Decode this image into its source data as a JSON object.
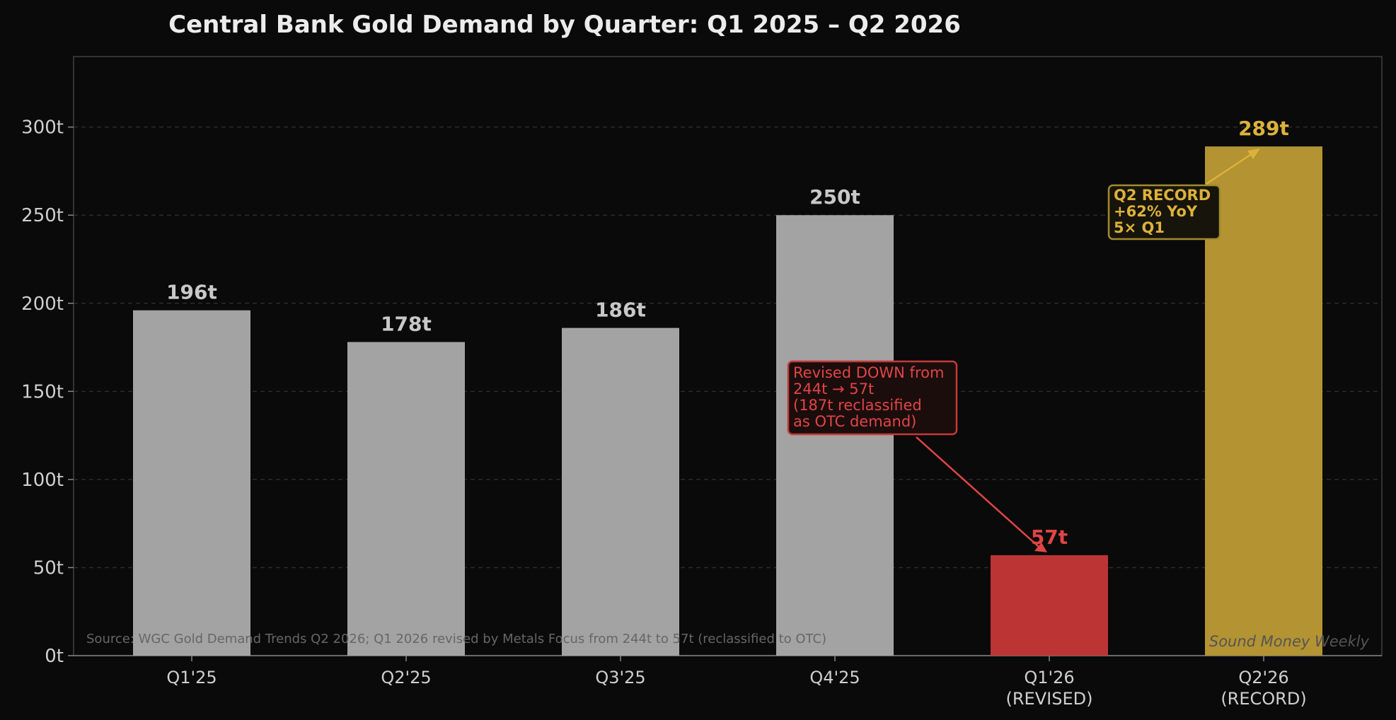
{
  "chart_data": {
    "type": "bar",
    "title": "Central Bank Gold Demand by Quarter: Q1 2025 – Q2 2026",
    "xlabel": "",
    "ylabel": "",
    "ylim": [
      0,
      340
    ],
    "yticks": [
      0,
      50,
      100,
      150,
      200,
      250,
      300
    ],
    "ytick_labels": [
      "0t",
      "50t",
      "100t",
      "150t",
      "200t",
      "250t",
      "300t"
    ],
    "grid": true,
    "categories": [
      [
        "Q1'25"
      ],
      [
        "Q2'25"
      ],
      [
        "Q3'25"
      ],
      [
        "Q4'25"
      ],
      [
        "Q1'26",
        "(REVISED)"
      ],
      [
        "Q2'26",
        "(RECORD)"
      ]
    ],
    "values": [
      196,
      178,
      186,
      250,
      57,
      289
    ],
    "value_labels": [
      "196t",
      "178t",
      "186t",
      "250t",
      "57t",
      "289t"
    ],
    "bar_colors": [
      "#a3a3a3",
      "#a3a3a3",
      "#a3a3a3",
      "#a3a3a3",
      "#bd3434",
      "#b39332"
    ],
    "label_colors": [
      "#c8c8c8",
      "#c8c8c8",
      "#c8c8c8",
      "#c8c8c8",
      "#e04545",
      "#dcb23a"
    ],
    "annotations": [
      {
        "lines": [
          "Revised DOWN from",
          "244t → 57t",
          "(187t reclassified",
          "as OTC demand)"
        ],
        "color": "#e04545",
        "target_category": 4,
        "target_value": 57
      },
      {
        "lines": [
          "Q2 RECORD",
          "+62% YoY",
          "5× Q1"
        ],
        "color": "#dcb23a",
        "target_category": 5,
        "target_value": 289
      }
    ],
    "source": "Source: WGC Gold Demand Trends Q2 2026; Q1 2026 revised by Metals Focus from 244t to 57t (reclassified to OTC)",
    "watermark": "Sound Money Weekly"
  },
  "colors": {
    "background": "#0a0a0a",
    "axes_border": "#333333",
    "grid": "#2c2c2c",
    "baseline": "#6a6a6a"
  }
}
